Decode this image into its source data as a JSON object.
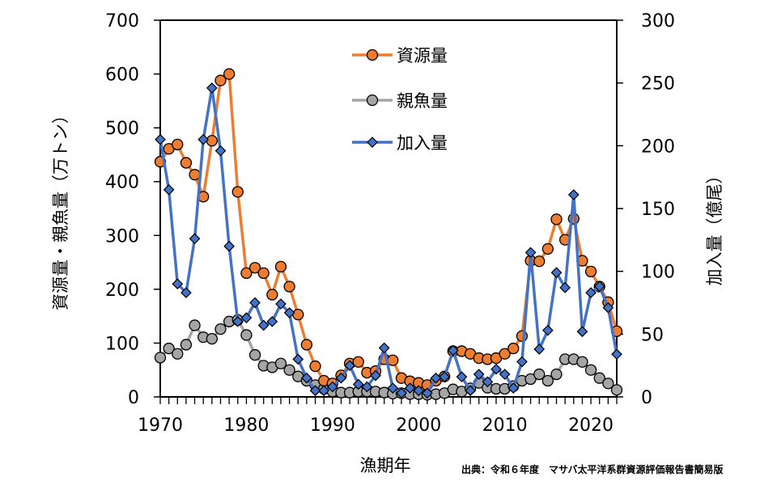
{
  "chart_data": {
    "type": "line",
    "xlabel": "漁期年",
    "ylabel_left": "資源量・親魚量（万トン）",
    "ylabel_right": "加入量（億尾）",
    "xlim": [
      1970,
      2023
    ],
    "ylim_left": [
      0,
      700
    ],
    "ylim_right": [
      0,
      300
    ],
    "x_ticks": [
      "1970",
      "1980",
      "1990",
      "2000",
      "2010",
      "2020"
    ],
    "y_left_ticks": [
      "0",
      "100",
      "200",
      "300",
      "400",
      "500",
      "600",
      "700"
    ],
    "y_right_ticks": [
      "0",
      "50",
      "100",
      "150",
      "200",
      "250",
      "300"
    ],
    "legend_position": "top-center",
    "grid": false,
    "x": [
      1970,
      1971,
      1972,
      1973,
      1974,
      1975,
      1976,
      1977,
      1978,
      1979,
      1980,
      1981,
      1982,
      1983,
      1984,
      1985,
      1986,
      1987,
      1988,
      1989,
      1990,
      1991,
      1992,
      1993,
      1994,
      1995,
      1996,
      1997,
      1998,
      1999,
      2000,
      2001,
      2002,
      2003,
      2004,
      2005,
      2006,
      2007,
      2008,
      2009,
      2010,
      2011,
      2012,
      2013,
      2014,
      2015,
      2016,
      2017,
      2018,
      2019,
      2020,
      2021,
      2022,
      2023
    ],
    "series": [
      {
        "name": "資源量",
        "axis": "left",
        "color": "#ED7D31",
        "marker": "circle",
        "values": [
          437,
          461,
          469,
          435,
          413,
          372,
          476,
          588,
          600,
          381,
          230,
          240,
          230,
          190,
          242,
          205,
          153,
          97,
          57,
          30,
          25,
          40,
          62,
          65,
          45,
          48,
          70,
          68,
          35,
          29,
          26,
          22,
          30,
          38,
          85,
          85,
          80,
          72,
          70,
          72,
          80,
          90,
          113,
          253,
          252,
          275,
          330,
          292,
          331,
          253,
          233,
          205,
          176,
          122
        ]
      },
      {
        "name": "親魚量",
        "axis": "left",
        "color": "#A5A5A5",
        "marker": "circle",
        "values": [
          73,
          90,
          80,
          97,
          133,
          111,
          108,
          126,
          140,
          143,
          115,
          78,
          58,
          55,
          62,
          50,
          38,
          30,
          22,
          15,
          10,
          8,
          8,
          10,
          10,
          10,
          8,
          6,
          7,
          5,
          5,
          4,
          5,
          7,
          14,
          10,
          16,
          26,
          17,
          15,
          15,
          20,
          30,
          33,
          42,
          30,
          42,
          70,
          70,
          65,
          50,
          35,
          25,
          13
        ]
      },
      {
        "name": "加入量",
        "axis": "right",
        "color": "#4472C4",
        "marker": "diamond",
        "values": [
          205,
          165,
          90,
          83,
          126,
          205,
          246,
          196,
          120,
          60,
          63,
          75,
          57,
          60,
          74,
          67,
          30,
          15,
          5,
          5,
          8,
          15,
          25,
          10,
          8,
          17,
          39,
          7,
          3,
          7,
          5,
          3,
          15,
          16,
          37,
          16,
          5,
          18,
          12,
          22,
          18,
          7,
          28,
          115,
          38,
          53,
          99,
          87,
          161,
          52,
          83,
          88,
          71,
          34
        ]
      }
    ]
  },
  "source": "出典：令和６年度　マサバ太平洋系群資源評価報告書簡易版"
}
